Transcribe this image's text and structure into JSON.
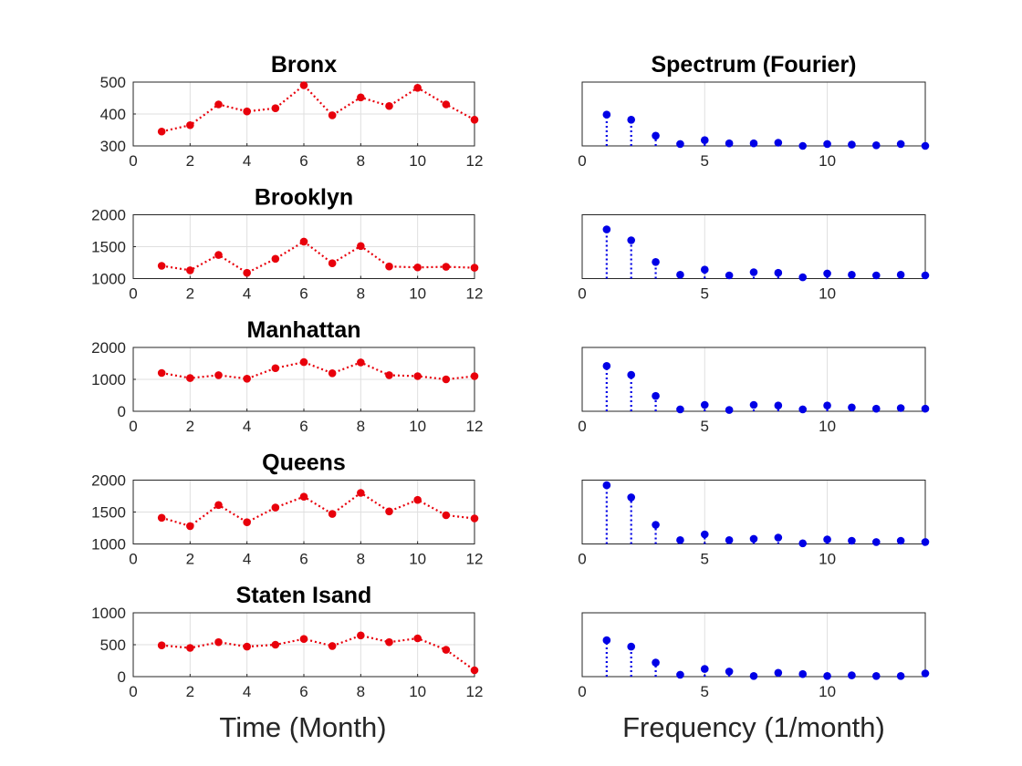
{
  "colors": {
    "time_series": "#e8000b",
    "spectrum": "#0000e6",
    "axis": "#262626",
    "grid": "#dfdfdf"
  },
  "labels": {
    "time_xlabel": "Time (Month)",
    "freq_xlabel": "Frequency (1/month)",
    "spectrum_title": "Spectrum (Fourier)"
  },
  "chart_data": [
    {
      "type": "line",
      "title": "Bronx",
      "x": [
        1,
        2,
        3,
        4,
        5,
        6,
        7,
        8,
        9,
        10,
        11,
        12
      ],
      "values": [
        345,
        365,
        430,
        408,
        418,
        490,
        396,
        452,
        425,
        482,
        430,
        382
      ],
      "xlim": [
        0,
        12
      ],
      "xticks": [
        0,
        2,
        4,
        6,
        8,
        10,
        12
      ],
      "ylim": [
        300,
        500
      ],
      "yticks": [
        300,
        400,
        500
      ],
      "grid": true,
      "linestyle": "dotted",
      "marker": "dot"
    },
    {
      "type": "line",
      "title": "Brooklyn",
      "x": [
        1,
        2,
        3,
        4,
        5,
        6,
        7,
        8,
        9,
        10,
        11,
        12
      ],
      "values": [
        1200,
        1130,
        1370,
        1090,
        1310,
        1580,
        1240,
        1510,
        1190,
        1175,
        1185,
        1170
      ],
      "xlim": [
        0,
        12
      ],
      "xticks": [
        0,
        2,
        4,
        6,
        8,
        10,
        12
      ],
      "ylim": [
        1000,
        2000
      ],
      "yticks": [
        1000,
        1500,
        2000
      ],
      "grid": true,
      "linestyle": "dotted",
      "marker": "dot"
    },
    {
      "type": "line",
      "title": "Manhattan",
      "x": [
        1,
        2,
        3,
        4,
        5,
        6,
        7,
        8,
        9,
        10,
        11,
        12
      ],
      "values": [
        1200,
        1040,
        1130,
        1020,
        1350,
        1540,
        1190,
        1530,
        1130,
        1100,
        1000,
        1100
      ],
      "xlim": [
        0,
        12
      ],
      "xticks": [
        0,
        2,
        4,
        6,
        8,
        10,
        12
      ],
      "ylim": [
        0,
        2000
      ],
      "yticks": [
        0,
        1000,
        2000
      ],
      "grid": true,
      "linestyle": "dotted",
      "marker": "dot"
    },
    {
      "type": "line",
      "title": "Queens",
      "x": [
        1,
        2,
        3,
        4,
        5,
        6,
        7,
        8,
        9,
        10,
        11,
        12
      ],
      "values": [
        1410,
        1280,
        1610,
        1340,
        1570,
        1740,
        1470,
        1800,
        1510,
        1690,
        1450,
        1400
      ],
      "xlim": [
        0,
        12
      ],
      "xticks": [
        0,
        2,
        4,
        6,
        8,
        10,
        12
      ],
      "ylim": [
        1000,
        2000
      ],
      "yticks": [
        1000,
        1500,
        2000
      ],
      "grid": true,
      "linestyle": "dotted",
      "marker": "dot"
    },
    {
      "type": "line",
      "title": "Staten Isand",
      "x": [
        1,
        2,
        3,
        4,
        5,
        6,
        7,
        8,
        9,
        10,
        11,
        12
      ],
      "values": [
        490,
        450,
        540,
        470,
        500,
        590,
        480,
        645,
        540,
        600,
        420,
        100
      ],
      "xlim": [
        0,
        12
      ],
      "xticks": [
        0,
        2,
        4,
        6,
        8,
        10,
        12
      ],
      "ylim": [
        0,
        1000
      ],
      "yticks": [
        0,
        500,
        1000
      ],
      "grid": true,
      "linestyle": "dotted",
      "marker": "dot"
    },
    {
      "type": "stem",
      "title": "Spectrum (Fourier)",
      "x": [
        1,
        2,
        3,
        4,
        5,
        6,
        7,
        8,
        9,
        10,
        11,
        12,
        13,
        14
      ],
      "values": [
        0.49,
        0.41,
        0.16,
        0.03,
        0.09,
        0.04,
        0.04,
        0.05,
        0.0,
        0.03,
        0.02,
        0.01,
        0.03,
        0.0
      ],
      "xlim": [
        0,
        14
      ],
      "xticks": [
        0,
        5,
        10
      ],
      "ylim": [
        0,
        1
      ],
      "yticks": [],
      "grid": true,
      "linestyle": "dotted",
      "marker": "dot"
    },
    {
      "type": "stem",
      "title": "",
      "x": [
        1,
        2,
        3,
        4,
        5,
        6,
        7,
        8,
        9,
        10,
        11,
        12,
        13,
        14
      ],
      "values": [
        0.77,
        0.6,
        0.26,
        0.06,
        0.14,
        0.05,
        0.1,
        0.09,
        0.02,
        0.08,
        0.06,
        0.05,
        0.06,
        0.05
      ],
      "xlim": [
        0,
        14
      ],
      "xticks": [
        0,
        5,
        10
      ],
      "ylim": [
        0,
        1
      ],
      "yticks": [],
      "grid": true,
      "linestyle": "dotted",
      "marker": "dot"
    },
    {
      "type": "stem",
      "title": "",
      "x": [
        1,
        2,
        3,
        4,
        5,
        6,
        7,
        8,
        9,
        10,
        11,
        12,
        13,
        14
      ],
      "values": [
        0.71,
        0.57,
        0.24,
        0.03,
        0.1,
        0.02,
        0.1,
        0.09,
        0.03,
        0.09,
        0.06,
        0.04,
        0.05,
        0.04
      ],
      "xlim": [
        0,
        14
      ],
      "xticks": [
        0,
        5,
        10
      ],
      "ylim": [
        0,
        1
      ],
      "yticks": [],
      "grid": true,
      "linestyle": "dotted",
      "marker": "dot"
    },
    {
      "type": "stem",
      "title": "",
      "x": [
        1,
        2,
        3,
        4,
        5,
        6,
        7,
        8,
        9,
        10,
        11,
        12,
        13,
        14
      ],
      "values": [
        0.92,
        0.73,
        0.3,
        0.06,
        0.15,
        0.06,
        0.08,
        0.1,
        0.01,
        0.07,
        0.05,
        0.03,
        0.05,
        0.03
      ],
      "xlim": [
        0,
        14
      ],
      "xticks": [
        0,
        5,
        10
      ],
      "ylim": [
        0,
        1
      ],
      "yticks": [],
      "grid": true,
      "linestyle": "dotted",
      "marker": "dot"
    },
    {
      "type": "stem",
      "title": "",
      "x": [
        1,
        2,
        3,
        4,
        5,
        6,
        7,
        8,
        9,
        10,
        11,
        12,
        13,
        14
      ],
      "values": [
        0.57,
        0.47,
        0.22,
        0.03,
        0.12,
        0.08,
        0.01,
        0.06,
        0.04,
        0.01,
        0.02,
        0.01,
        0.01,
        0.05
      ],
      "xlim": [
        0,
        14
      ],
      "xticks": [
        0,
        5,
        10
      ],
      "ylim": [
        0,
        1
      ],
      "yticks": [],
      "grid": true,
      "linestyle": "dotted",
      "marker": "dot"
    }
  ]
}
